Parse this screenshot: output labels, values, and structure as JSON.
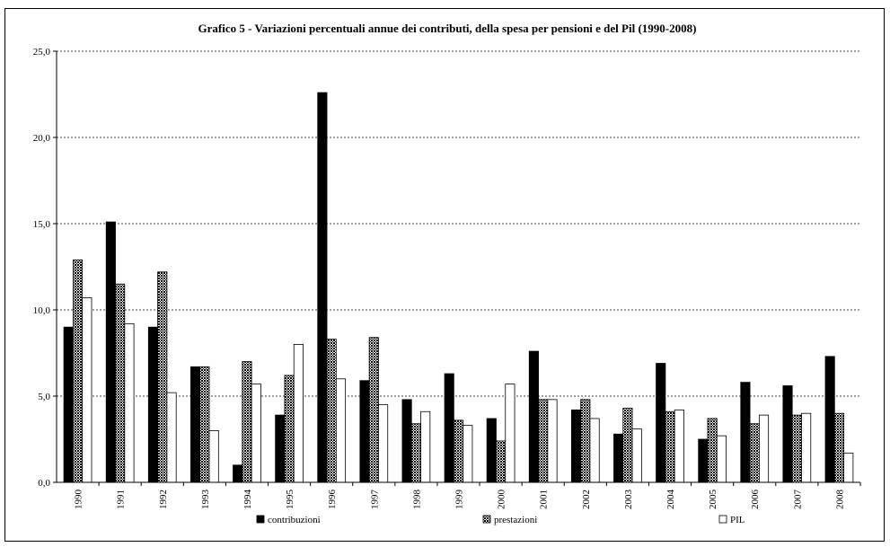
{
  "chart_data": {
    "type": "bar",
    "title": "Grafico 5 - Variazioni percentuali annue dei contributi, della spesa per pensioni e del Pil  (1990-2008)",
    "xlabel": "",
    "ylabel": "",
    "ylim": [
      0,
      25
    ],
    "y_ticks": [
      "0,0",
      "5,0",
      "10,0",
      "15,0",
      "20,0",
      "25,0"
    ],
    "grid": true,
    "legend_position": "bottom",
    "categories": [
      "1990",
      "1991",
      "1992",
      "1993",
      "1994",
      "1995",
      "1996",
      "1997",
      "1998",
      "1999",
      "2000",
      "2001",
      "2002",
      "2003",
      "2004",
      "2005",
      "2006",
      "2007",
      "2008"
    ],
    "series": [
      {
        "name": "contribuzioni",
        "fill": "#000000",
        "values": [
          9.0,
          15.1,
          9.0,
          6.7,
          1.0,
          3.9,
          22.6,
          5.9,
          4.8,
          6.3,
          3.7,
          7.6,
          4.2,
          2.8,
          6.9,
          2.5,
          5.8,
          5.6,
          7.3
        ]
      },
      {
        "name": "prestazioni",
        "fill": "hatch",
        "values": [
          12.9,
          11.5,
          12.2,
          6.7,
          7.0,
          6.2,
          8.3,
          8.4,
          3.4,
          3.6,
          2.4,
          4.8,
          4.8,
          4.3,
          4.1,
          3.7,
          3.4,
          3.9,
          4.0
        ]
      },
      {
        "name": "PIL",
        "fill": "#ffffff",
        "values": [
          10.7,
          9.2,
          5.2,
          3.0,
          5.7,
          8.0,
          6.0,
          4.5,
          4.1,
          3.3,
          5.7,
          4.8,
          3.7,
          3.1,
          4.2,
          2.7,
          3.9,
          4.0,
          1.7
        ]
      }
    ]
  }
}
